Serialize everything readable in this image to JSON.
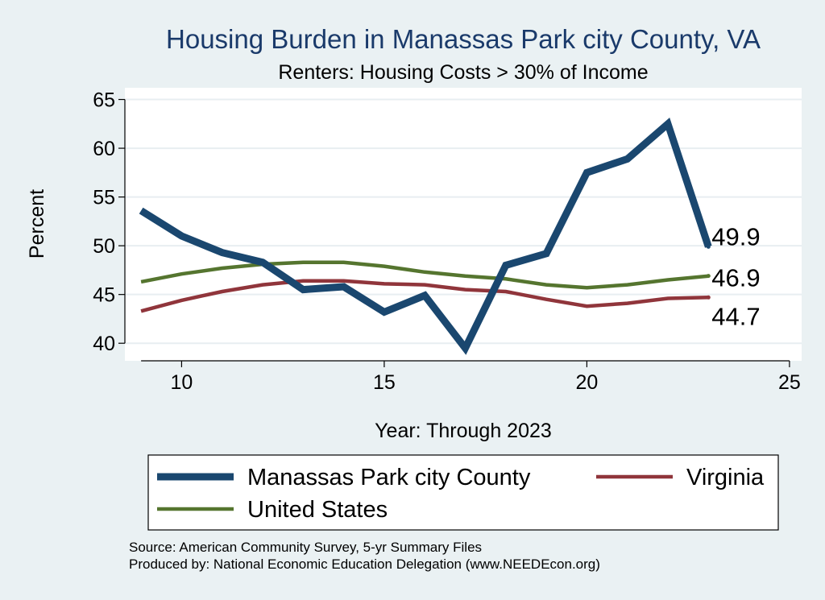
{
  "chart_data": {
    "type": "line",
    "title": "Housing Burden in Manassas Park city County, VA",
    "subtitle": "Renters: Housing Costs > 30% of Income",
    "xlabel": "Year: Through 2023",
    "ylabel": "Percent",
    "xlim": [
      8.6,
      25.3
    ],
    "ylim": [
      38.2,
      66.2
    ],
    "xticks": [
      10,
      15,
      20,
      25
    ],
    "yticks": [
      40,
      45,
      50,
      55,
      60,
      65
    ],
    "grid": true,
    "legend_position": "bottom",
    "x": [
      9,
      10,
      11,
      12,
      13,
      14,
      15,
      16,
      17,
      18,
      19,
      20,
      21,
      22,
      23
    ],
    "series": [
      {
        "name": "Manassas Park city County",
        "color": "#1a476f",
        "width": 9,
        "values": [
          53.6,
          51.0,
          49.3,
          48.3,
          45.5,
          45.8,
          43.2,
          44.9,
          39.5,
          48.0,
          49.2,
          57.5,
          58.9,
          62.5,
          49.9
        ],
        "end_label": "49.9"
      },
      {
        "name": "United States",
        "color": "#55752f",
        "width": 4.5,
        "values": [
          46.3,
          47.1,
          47.7,
          48.1,
          48.3,
          48.3,
          47.9,
          47.3,
          46.9,
          46.6,
          46.0,
          45.7,
          46.0,
          46.5,
          46.9
        ],
        "end_label": "46.9"
      },
      {
        "name": "Virginia",
        "color": "#90353b",
        "width": 4.5,
        "values": [
          43.3,
          44.4,
          45.3,
          46.0,
          46.4,
          46.4,
          46.1,
          46.0,
          45.5,
          45.3,
          44.5,
          43.8,
          44.1,
          44.6,
          44.7
        ],
        "end_label": "44.7"
      }
    ],
    "legend": [
      {
        "name": "Manassas Park city County",
        "color": "#1a476f",
        "width": 9
      },
      {
        "name": "Virginia",
        "color": "#90353b",
        "width": 4.5
      },
      {
        "name": "United States",
        "color": "#55752f",
        "width": 4.5
      }
    ]
  },
  "source_note": {
    "line1": "Source: American Community Survey, 5-yr Summary Files",
    "line2": "Produced by: National Economic Education Delegation (www.NEEDEcon.org)"
  }
}
